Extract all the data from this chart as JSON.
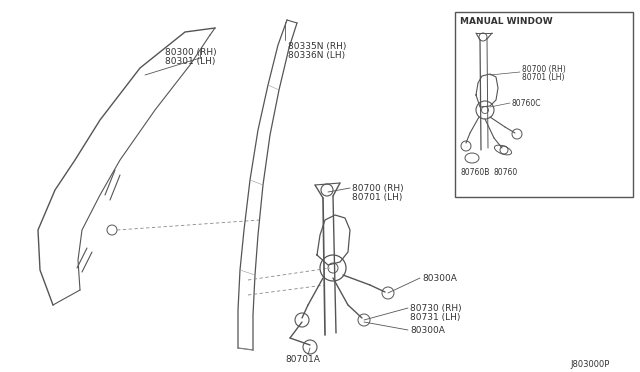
{
  "background_color": "#ffffff",
  "line_color": "#555555",
  "text_color": "#333333",
  "diagram_code": "J803000P",
  "font_size": 6.5,
  "inset_title": "MANUAL WINDOW",
  "labels": {
    "glass": [
      "80300 (RH)",
      "80301 (LH)"
    ],
    "weatherstrip": [
      "80335N (RH)",
      "80336N (LH)"
    ],
    "reg_upper": [
      "80700 (RH)",
      "80701 (LH)"
    ],
    "bolt_upper": "80300A",
    "reg_lower": [
      "80730 (RH)",
      "80731 (LH)"
    ],
    "bolt_lower": "80300A",
    "arm": "80701A",
    "inset_reg": [
      "80700 (RH)",
      "80701 (LH)"
    ],
    "inset_c": "80760C",
    "inset_b": "80760B",
    "inset_760": "80760"
  }
}
